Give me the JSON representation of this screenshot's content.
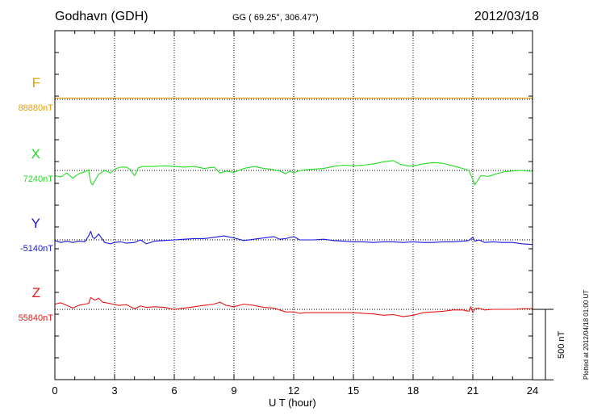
{
  "header": {
    "station": "Godhavn (GDH)",
    "coords": "GG ( 69.25°, 306.47°)",
    "date": "2012/03/18"
  },
  "plotted_note": "Plotted at 2012/04/18 01:00 UT",
  "chart_data": {
    "type": "line",
    "xlabel": "U T (hour)",
    "xlim": [
      0,
      24
    ],
    "xticks": [
      0,
      3,
      6,
      9,
      12,
      15,
      18,
      21,
      24
    ],
    "grid": true,
    "scale_bar_nT": 500,
    "scale_label": "500 nT",
    "series": [
      {
        "name": "F",
        "baseline": "88880nT",
        "color": "#e8a000",
        "x": [
          0,
          24
        ],
        "y": [
          88900,
          88900
        ]
      },
      {
        "name": "X",
        "baseline": "7240nT",
        "color": "#22dd22",
        "x": [
          0,
          0.3,
          0.6,
          0.9,
          1.2,
          1.5,
          1.7,
          1.8,
          1.9,
          2.0,
          2.2,
          2.5,
          2.8,
          3.0,
          3.3,
          3.6,
          3.8,
          4.0,
          4.2,
          4.4,
          4.6,
          5.0,
          5.5,
          6.0,
          6.5,
          7.0,
          7.5,
          8.0,
          8.3,
          8.6,
          9.0,
          9.5,
          10.0,
          10.5,
          11.0,
          11.3,
          11.6,
          11.8,
          12.0,
          12.3,
          12.6,
          13.0,
          13.5,
          14.0,
          14.5,
          15.0,
          15.5,
          16.0,
          16.5,
          17.0,
          17.3,
          17.7,
          18.0,
          18.5,
          19.0,
          19.5,
          20.0,
          20.5,
          20.8,
          21.0,
          21.1,
          21.4,
          21.8,
          22.2,
          22.6,
          23.0,
          23.4,
          23.8,
          24.0
        ],
        "y": [
          7160,
          7140,
          7200,
          7120,
          7190,
          7220,
          7250,
          7060,
          7020,
          7080,
          7180,
          7240,
          7200,
          7260,
          7290,
          7290,
          7250,
          7160,
          7280,
          7300,
          7300,
          7300,
          7310,
          7300,
          7290,
          7300,
          7270,
          7290,
          7200,
          7230,
          7210,
          7270,
          7300,
          7270,
          7250,
          7230,
          7190,
          7230,
          7200,
          7240,
          7250,
          7260,
          7270,
          7300,
          7320,
          7310,
          7320,
          7340,
          7370,
          7390,
          7340,
          7310,
          7310,
          7340,
          7360,
          7350,
          7310,
          7270,
          7240,
          7100,
          7020,
          7160,
          7150,
          7190,
          7220,
          7230,
          7240,
          7230,
          7230
        ]
      },
      {
        "name": "Y",
        "baseline": "-5140nT",
        "color": "#1818e0",
        "x": [
          0,
          0.3,
          0.6,
          0.9,
          1.2,
          1.5,
          1.7,
          1.8,
          1.9,
          2.0,
          2.2,
          2.5,
          2.8,
          3.0,
          3.3,
          3.6,
          4.0,
          4.3,
          4.6,
          5.0,
          5.5,
          6.0,
          6.5,
          7.0,
          7.5,
          8.0,
          8.5,
          9.0,
          9.5,
          10.0,
          10.5,
          11.0,
          11.3,
          11.6,
          12.0,
          12.3,
          12.6,
          13.0,
          13.5,
          14.0,
          14.5,
          15.0,
          15.5,
          16.0,
          16.5,
          17.0,
          17.5,
          18.0,
          18.5,
          19.0,
          19.5,
          20.0,
          20.5,
          20.8,
          21.0,
          21.1,
          21.3,
          21.6,
          22.0,
          22.5,
          23.0,
          23.5,
          24.0
        ],
        "y": [
          -5150,
          -5180,
          -5160,
          -5180,
          -5160,
          -5170,
          -5080,
          -5010,
          -5100,
          -5120,
          -5050,
          -5180,
          -5200,
          -5180,
          -5170,
          -5190,
          -5180,
          -5140,
          -5200,
          -5160,
          -5150,
          -5140,
          -5130,
          -5120,
          -5120,
          -5100,
          -5080,
          -5110,
          -5150,
          -5130,
          -5110,
          -5090,
          -5130,
          -5120,
          -5090,
          -5140,
          -5140,
          -5140,
          -5130,
          -5150,
          -5160,
          -5170,
          -5170,
          -5180,
          -5170,
          -5170,
          -5180,
          -5170,
          -5180,
          -5180,
          -5170,
          -5170,
          -5160,
          -5150,
          -5100,
          -5160,
          -5140,
          -5180,
          -5170,
          -5180,
          -5180,
          -5200,
          -5210
        ]
      },
      {
        "name": "Z",
        "baseline": "55840nT",
        "color": "#e81818",
        "x": [
          0,
          0.3,
          0.6,
          0.9,
          1.2,
          1.5,
          1.7,
          1.8,
          2.0,
          2.2,
          2.4,
          2.6,
          2.9,
          3.2,
          3.6,
          4.0,
          4.3,
          4.6,
          5.0,
          5.5,
          6.0,
          6.5,
          7.0,
          7.5,
          8.0,
          8.3,
          8.6,
          9.0,
          9.5,
          10.0,
          10.5,
          11.0,
          11.3,
          11.6,
          12.0,
          12.3,
          12.6,
          13.0,
          13.5,
          14.0,
          14.5,
          15.0,
          15.5,
          16.0,
          16.5,
          17.0,
          17.5,
          17.8,
          18.0,
          18.5,
          19.0,
          19.5,
          20.0,
          20.5,
          20.8,
          20.9,
          21.0,
          21.1,
          21.3,
          21.6,
          22.0,
          22.5,
          23.0,
          23.5,
          24.0
        ],
        "y": [
          55920,
          55940,
          55900,
          55860,
          55900,
          55920,
          55930,
          56020,
          55980,
          56010,
          55950,
          55940,
          55920,
          55900,
          55910,
          55850,
          55890,
          55870,
          55880,
          55870,
          55840,
          55860,
          55880,
          55900,
          55920,
          55950,
          55900,
          55880,
          55920,
          55900,
          55870,
          55860,
          55830,
          55800,
          55800,
          55780,
          55790,
          55790,
          55790,
          55790,
          55790,
          55790,
          55780,
          55770,
          55750,
          55760,
          55730,
          55740,
          55750,
          55790,
          55800,
          55810,
          55830,
          55830,
          55810,
          55880,
          55790,
          55850,
          55860,
          55830,
          55840,
          55840,
          55840,
          55850,
          55850
        ]
      }
    ]
  }
}
